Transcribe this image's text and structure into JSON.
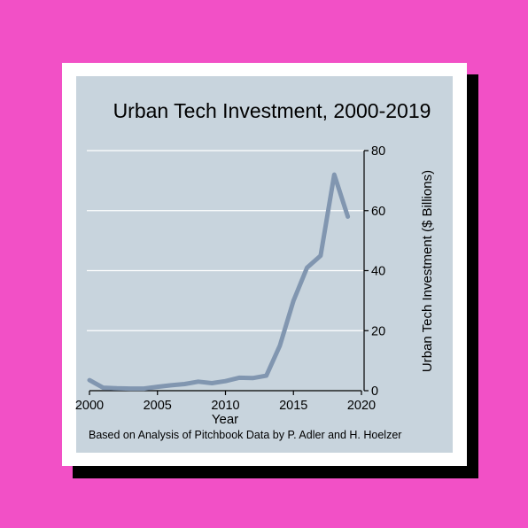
{
  "colors": {
    "page_background": "#f250c6",
    "card": "#ffffff",
    "card_shadow": "#000000",
    "plot_background": "#c8d4dd",
    "gridline": "#ffffff",
    "series_line": "#8196b0",
    "text": "#000000"
  },
  "chart_data": {
    "type": "line",
    "title": "Urban Tech Investment, 2000-2019",
    "xlabel": "Year",
    "ylabel": "Urban Tech Investment ($ Billions)",
    "caption": "Based on Analysis of Pitchbook Data by P. Adler and H. Hoelzer",
    "xlim": [
      2000,
      2020
    ],
    "ylim": [
      0,
      80
    ],
    "x_ticks": [
      2000,
      2005,
      2010,
      2015,
      2020
    ],
    "y_ticks": [
      0,
      20,
      40,
      60,
      80
    ],
    "y_axis_position": "right",
    "grid": "horizontal",
    "legend": "none",
    "series": [
      {
        "x": [
          2000,
          2001,
          2002,
          2003,
          2004,
          2005,
          2006,
          2007,
          2008,
          2009,
          2010,
          2011,
          2012,
          2013,
          2014,
          2015,
          2016,
          2017,
          2018,
          2019
        ],
        "values": [
          3.5,
          1.0,
          0.8,
          0.7,
          0.7,
          1.3,
          1.8,
          2.2,
          3.0,
          2.5,
          3.2,
          4.3,
          4.2,
          5.0,
          15.0,
          30.0,
          41.0,
          45.0,
          72.0,
          58.0
        ]
      }
    ]
  }
}
